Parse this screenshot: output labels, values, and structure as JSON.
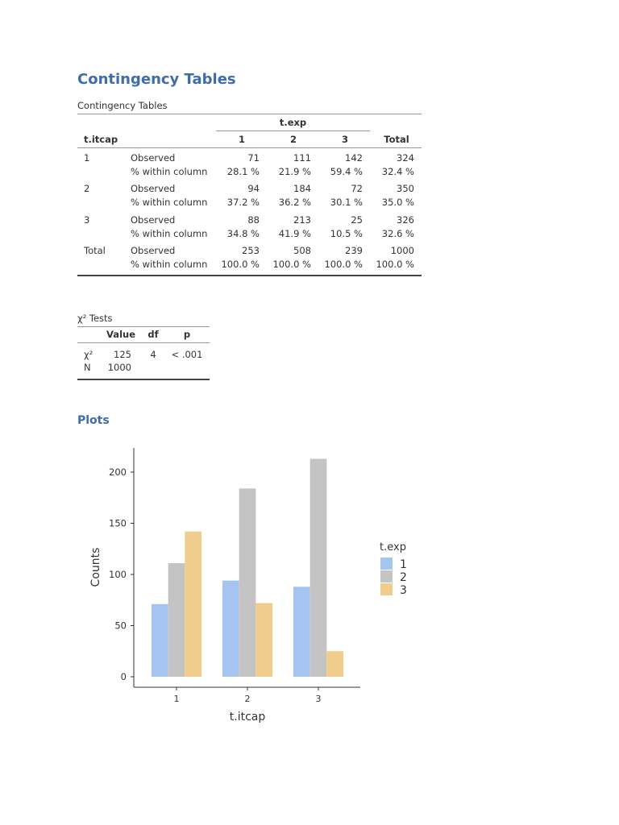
{
  "title": "Contingency Tables",
  "contingency": {
    "caption": "Contingency Tables",
    "row_var": "t.itcap",
    "col_var": "t.exp",
    "columns": [
      "1",
      "2",
      "3",
      "Total"
    ],
    "rows": [
      {
        "level": "1",
        "observed_label": "Observed",
        "pct_label": "% within column",
        "observed": [
          "71",
          "111",
          "142",
          "324"
        ],
        "pct": [
          "28.1 %",
          "21.9 %",
          "59.4 %",
          "32.4 %"
        ]
      },
      {
        "level": "2",
        "observed_label": "Observed",
        "pct_label": "% within column",
        "observed": [
          "94",
          "184",
          "72",
          "350"
        ],
        "pct": [
          "37.2 %",
          "36.2 %",
          "30.1 %",
          "35.0 %"
        ]
      },
      {
        "level": "3",
        "observed_label": "Observed",
        "pct_label": "% within column",
        "observed": [
          "88",
          "213",
          "25",
          "326"
        ],
        "pct": [
          "34.8 %",
          "41.9 %",
          "10.5 %",
          "32.6 %"
        ]
      },
      {
        "level": "Total",
        "observed_label": "Observed",
        "pct_label": "% within column",
        "observed": [
          "253",
          "508",
          "239",
          "1000"
        ],
        "pct": [
          "100.0 %",
          "100.0 %",
          "100.0 %",
          "100.0 %"
        ]
      }
    ]
  },
  "chi": {
    "caption": "χ² Tests",
    "headers": [
      "",
      "Value",
      "df",
      "p"
    ],
    "rows": [
      {
        "label": "χ²",
        "value": "125",
        "df": "4",
        "p": "< .001"
      },
      {
        "label": "N",
        "value": "1000",
        "df": "",
        "p": ""
      }
    ]
  },
  "plots_title": "Plots",
  "chart_data": {
    "type": "bar",
    "categories": [
      "1",
      "2",
      "3"
    ],
    "series": [
      {
        "name": "1",
        "values": [
          71,
          94,
          88
        ],
        "color": "#a6c4f0"
      },
      {
        "name": "2",
        "values": [
          111,
          184,
          213
        ],
        "color": "#c4c4c4"
      },
      {
        "name": "3",
        "values": [
          142,
          72,
          25
        ],
        "color": "#f0cd8c"
      }
    ],
    "xlabel": "t.itcap",
    "ylabel": "Counts",
    "yticks": [
      "0",
      "50",
      "100",
      "150",
      "200"
    ],
    "ylim": [
      0,
      225
    ],
    "legend_title": "t.exp",
    "legend_position": "right",
    "grid": false
  }
}
